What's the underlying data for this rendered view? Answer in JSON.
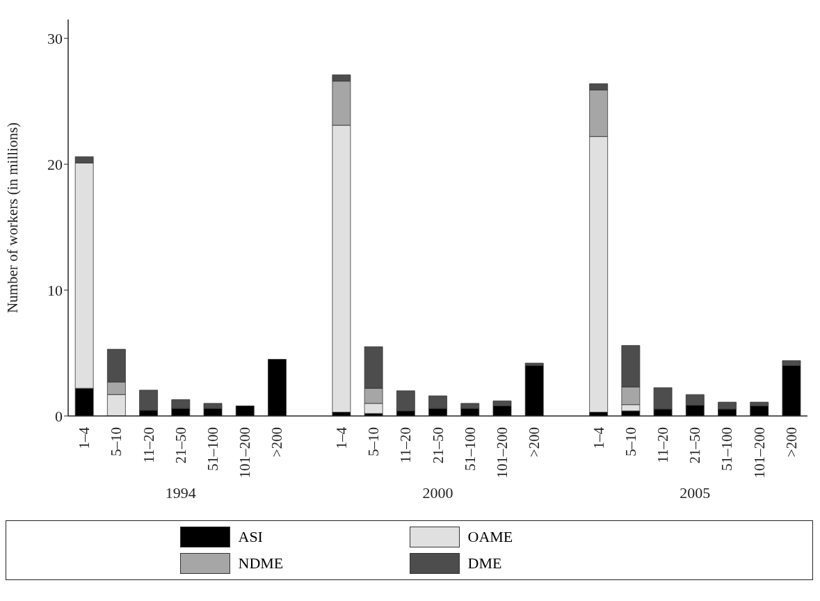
{
  "chart_data": {
    "type": "bar",
    "stacked": true,
    "ylabel": "Number of workers (in millions)",
    "categories": [
      "1–4",
      "5–10",
      "11–20",
      "21–50",
      "51–100",
      "101–200",
      ">200",
      null,
      "1–4",
      "5–10",
      "11–20",
      "21–50",
      "51–100",
      "101–200",
      ">200",
      null,
      "1–4",
      "5–10",
      "11–20",
      "21–50",
      "51–100",
      "101–200",
      ">200"
    ],
    "series": [
      {
        "name": "ASI",
        "color": "#000000",
        "values": [
          2.2,
          0,
          0.45,
          0.6,
          0.6,
          0.8,
          4.5,
          null,
          0.3,
          0.2,
          0.4,
          0.6,
          0.6,
          0.8,
          4.0,
          null,
          0.3,
          0.4,
          0.55,
          0.85,
          0.55,
          0.8,
          4.0
        ]
      },
      {
        "name": "OAME",
        "color": "#e0e0e0",
        "values": [
          17.9,
          1.7,
          0,
          0,
          0,
          0,
          0,
          null,
          22.8,
          0.8,
          0,
          0,
          0,
          0,
          0,
          null,
          21.9,
          0.5,
          0,
          0,
          0,
          0,
          0
        ]
      },
      {
        "name": "NDME",
        "color": "#a6a6a6",
        "values": [
          0,
          1.0,
          0,
          0,
          0,
          0,
          0,
          null,
          3.5,
          1.2,
          0,
          0,
          0,
          0,
          0,
          null,
          3.7,
          1.4,
          0,
          0,
          0,
          0,
          0
        ]
      },
      {
        "name": "DME",
        "color": "#4d4d4d",
        "values": [
          0.5,
          2.6,
          1.6,
          0.7,
          0.4,
          0,
          0,
          null,
          0.5,
          3.3,
          1.6,
          1.0,
          0.4,
          0.4,
          0.2,
          null,
          0.5,
          3.3,
          1.7,
          0.85,
          0.55,
          0.3,
          0.4
        ]
      }
    ],
    "annotations": [
      "1994",
      "2000",
      "2005"
    ],
    "ylim": [
      0,
      31.5
    ],
    "yticks": [
      0,
      10,
      20,
      30
    ],
    "grid": false,
    "legend": "bottom"
  }
}
